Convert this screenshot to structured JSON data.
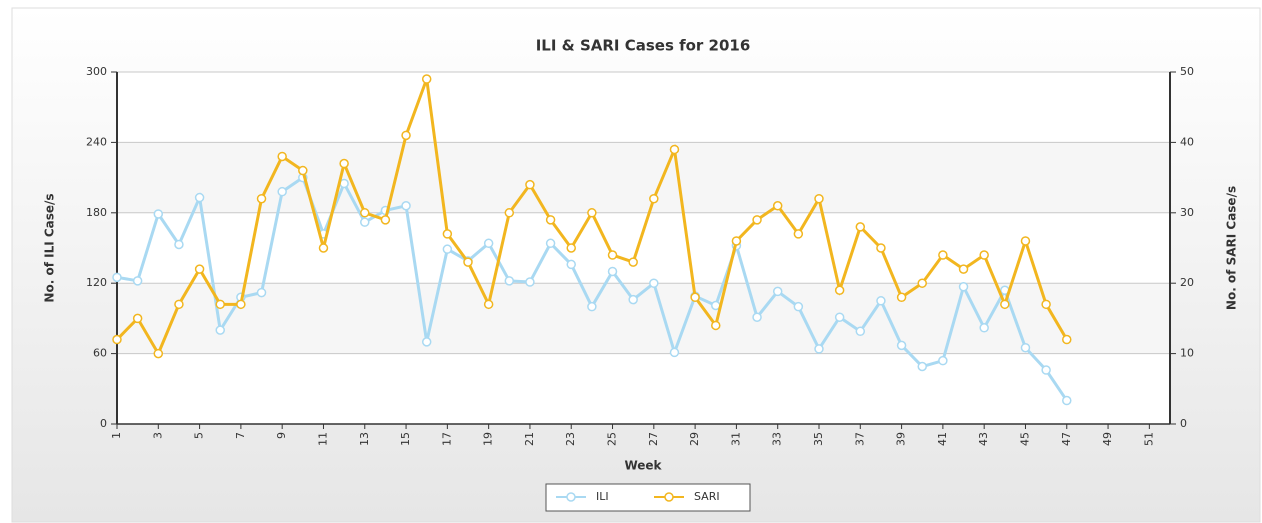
{
  "chart_data": {
    "type": "line",
    "title": "ILI & SARI Cases for 2016",
    "xlabel": "Week",
    "ylabel": "No. of ILI Case/s",
    "y2label": "No. of SARI Case/s",
    "x": [
      1,
      2,
      3,
      4,
      5,
      6,
      7,
      8,
      9,
      10,
      11,
      12,
      13,
      14,
      15,
      16,
      17,
      18,
      19,
      20,
      21,
      22,
      23,
      24,
      25,
      26,
      27,
      28,
      29,
      30,
      31,
      32,
      33,
      34,
      35,
      36,
      37,
      38,
      39,
      40,
      41,
      42,
      43,
      44,
      45,
      46,
      47
    ],
    "xlim": [
      1,
      52
    ],
    "xticks": [
      1,
      3,
      5,
      7,
      9,
      11,
      13,
      15,
      17,
      19,
      21,
      23,
      25,
      27,
      29,
      31,
      33,
      35,
      37,
      39,
      41,
      43,
      45,
      47,
      49,
      51
    ],
    "ylim": [
      0,
      300
    ],
    "yticks": [
      0,
      60,
      120,
      180,
      240,
      300
    ],
    "y2lim": [
      0,
      50
    ],
    "y2ticks": [
      0,
      10,
      20,
      30,
      40,
      50
    ],
    "grid": true,
    "legend": "bottom",
    "series": [
      {
        "name": "ILI",
        "color": "#a9d9f2",
        "values": [
          125,
          122,
          179,
          153,
          193,
          80,
          108,
          112,
          198,
          210,
          162,
          205,
          172,
          182,
          186,
          70,
          149,
          139,
          154,
          122,
          121,
          154,
          136,
          100,
          130,
          106,
          120,
          61,
          109,
          101,
          152,
          91,
          113,
          100,
          64,
          91,
          79,
          105,
          67,
          49,
          54,
          117,
          82,
          114,
          65,
          46,
          20
        ]
      },
      {
        "name": "SARI",
        "color": "#f2b61f",
        "axis": "y2",
        "values": [
          12,
          15,
          10,
          17,
          22,
          17,
          17,
          32,
          38,
          36,
          25,
          37,
          30,
          29,
          41,
          49,
          27,
          23,
          17,
          30,
          34,
          29,
          25,
          30,
          24,
          23,
          32,
          39,
          18,
          14,
          26,
          29,
          31,
          27,
          32,
          19,
          28,
          25,
          18,
          20,
          24,
          22,
          24,
          17,
          26,
          17,
          12
        ]
      }
    ]
  }
}
